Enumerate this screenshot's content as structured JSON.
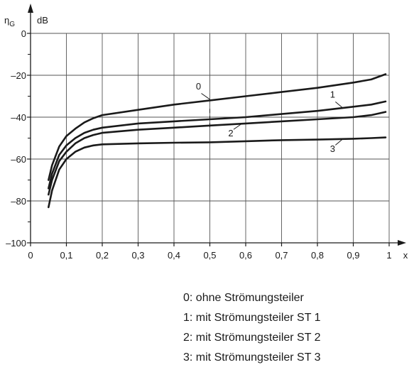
{
  "chart_data": {
    "type": "line",
    "title": "",
    "ylabel": "ηG",
    "yunit": "dB",
    "xlabel": "x",
    "xlim": [
      0,
      1
    ],
    "ylim": [
      -100,
      0
    ],
    "grid": true,
    "x_ticks": [
      0,
      0.1,
      0.2,
      0.3,
      0.4,
      0.5,
      0.6,
      0.7,
      0.8,
      0.9,
      1
    ],
    "x_tick_labels": [
      "0",
      "0,1",
      "0,2",
      "0,3",
      "0,4",
      "0,5",
      "0,6",
      "0,7",
      "0,8",
      "0,9",
      "1"
    ],
    "y_ticks": [
      0,
      -20,
      -40,
      -60,
      -80,
      -100
    ],
    "y_tick_labels": [
      "0",
      "–20",
      "–40",
      "–60",
      "–80",
      "–100"
    ],
    "y_minor_ticks": [
      -10,
      -30,
      -50,
      -70,
      -90
    ],
    "series": [
      {
        "name": "0",
        "x": [
          0.05,
          0.06,
          0.08,
          0.1,
          0.125,
          0.15,
          0.175,
          0.2,
          0.3,
          0.4,
          0.5,
          0.6,
          0.7,
          0.8,
          0.9,
          0.95,
          0.99
        ],
        "y": [
          -70,
          -63,
          -54,
          -49,
          -45.5,
          -42.5,
          -40.5,
          -39,
          -36.5,
          -34,
          -32,
          -30,
          -28,
          -26,
          -23.5,
          -22,
          -19.5
        ]
      },
      {
        "name": "1",
        "x": [
          0.05,
          0.06,
          0.08,
          0.1,
          0.125,
          0.15,
          0.175,
          0.2,
          0.3,
          0.4,
          0.5,
          0.6,
          0.7,
          0.8,
          0.9,
          0.95,
          0.99
        ],
        "y": [
          -74,
          -67,
          -58,
          -53.5,
          -50,
          -47.5,
          -46,
          -45,
          -43,
          -42,
          -41,
          -40,
          -38.5,
          -37,
          -35,
          -34,
          -32.5
        ]
      },
      {
        "name": "2",
        "x": [
          0.05,
          0.06,
          0.08,
          0.1,
          0.125,
          0.15,
          0.175,
          0.2,
          0.3,
          0.4,
          0.5,
          0.6,
          0.7,
          0.8,
          0.9,
          0.95,
          0.99
        ],
        "y": [
          -77,
          -70,
          -61,
          -56.5,
          -52.5,
          -50,
          -48.5,
          -47.5,
          -46,
          -45,
          -44,
          -43,
          -42,
          -41,
          -40,
          -39,
          -37.5
        ]
      },
      {
        "name": "3",
        "x": [
          0.05,
          0.06,
          0.08,
          0.1,
          0.125,
          0.15,
          0.175,
          0.2,
          0.3,
          0.4,
          0.5,
          0.6,
          0.7,
          0.8,
          0.9,
          0.95,
          0.99
        ],
        "y": [
          -83,
          -75,
          -65,
          -60,
          -56.5,
          -54.5,
          -53.5,
          -53,
          -52.5,
          -52.2,
          -52,
          -51.5,
          -51,
          -50.7,
          -50.3,
          -50,
          -49.7
        ]
      }
    ],
    "curve_labels": [
      {
        "text": "0",
        "anchor_x": 0.5,
        "anchor_y": -31.5
      },
      {
        "text": "1",
        "anchor_x": 0.87,
        "anchor_y": -35.5
      },
      {
        "text": "2",
        "anchor_x": 0.59,
        "anchor_y": -43
      },
      {
        "text": "3",
        "anchor_x": 0.87,
        "anchor_y": -50.5
      }
    ],
    "dashed_marker": {
      "x": 0.5,
      "y_from": -36,
      "y_to": -45
    }
  },
  "legend": [
    "0: ohne Strömungsteiler",
    "1: mit Strömungsteiler ST 1",
    "2: mit Strömungsteiler ST 2",
    "3: mit Strömungsteiler ST 3"
  ]
}
